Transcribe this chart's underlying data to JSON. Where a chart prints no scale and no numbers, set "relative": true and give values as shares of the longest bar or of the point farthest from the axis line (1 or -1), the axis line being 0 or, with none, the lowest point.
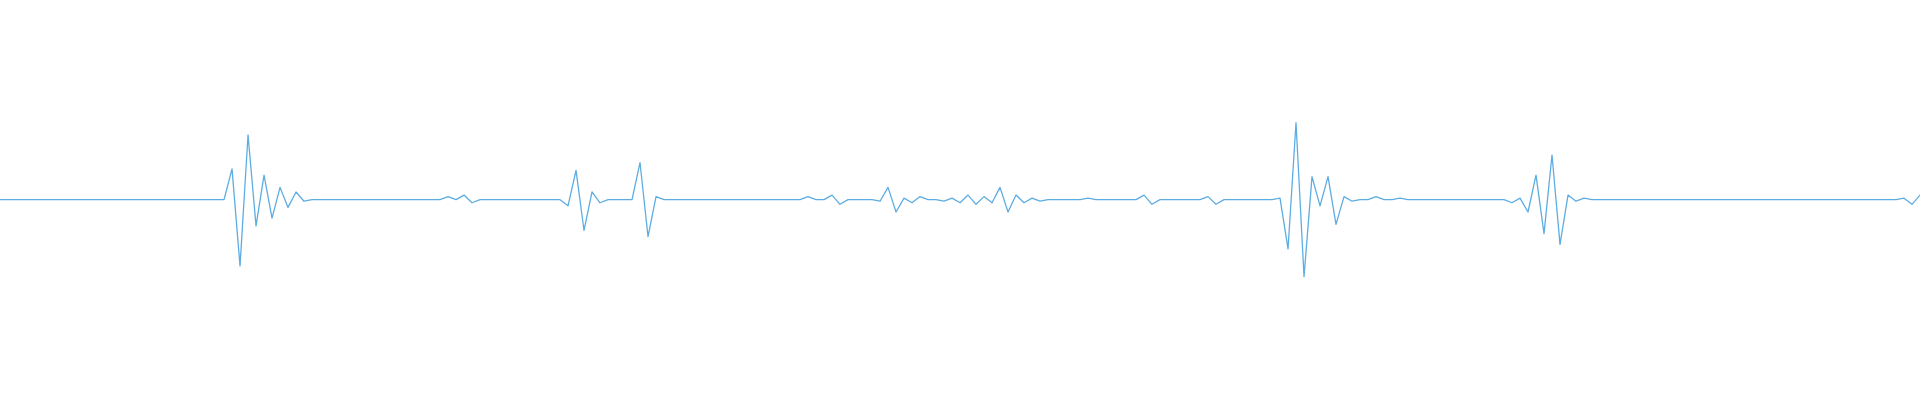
{
  "chart_data": {
    "type": "line",
    "relative": true,
    "color": "#5dade2",
    "categories": [
      null,
      null,
      null,
      null,
      null,
      null,
      null,
      null,
      null,
      null,
      null,
      null,
      null,
      null,
      null,
      null,
      null,
      null,
      null,
      null,
      null,
      null,
      null,
      null,
      null,
      null,
      null,
      null,
      null,
      null,
      null,
      null,
      null,
      null,
      null,
      null,
      null,
      null,
      null,
      null,
      null,
      null,
      null,
      null,
      null,
      null,
      null,
      null,
      null,
      null,
      null,
      null,
      null,
      null,
      null,
      null,
      null,
      null,
      null,
      null,
      null,
      null,
      null,
      null,
      null,
      null,
      null,
      null,
      null,
      null,
      null,
      null,
      null,
      null,
      null,
      null,
      null,
      null,
      null,
      null,
      null,
      null,
      null,
      null,
      null,
      null,
      null,
      null,
      null,
      null,
      null,
      null,
      null,
      null,
      null,
      null,
      null,
      null,
      null,
      null,
      null,
      null,
      null,
      null,
      null,
      null,
      null,
      null,
      null,
      null,
      null,
      null,
      null,
      null,
      null,
      null,
      null,
      null,
      null,
      null,
      null,
      null,
      null,
      null,
      null,
      null,
      null,
      null,
      null,
      null,
      null,
      null,
      null,
      null,
      null,
      null,
      null,
      null,
      null,
      null,
      null,
      null,
      null,
      null,
      null,
      null,
      null,
      null,
      null,
      null,
      null,
      null,
      null,
      null,
      null,
      null,
      null,
      null,
      null,
      null,
      null,
      null,
      null,
      null,
      null,
      null,
      null,
      null,
      null,
      null,
      null,
      null,
      null,
      null,
      null,
      null,
      null,
      null,
      null,
      null,
      null,
      null,
      null,
      null,
      null,
      null,
      null,
      null,
      null,
      null,
      null,
      null,
      null,
      null,
      null,
      null,
      null,
      null,
      null,
      null,
      null,
      null,
      null,
      null,
      null,
      null,
      null,
      null,
      null,
      null,
      null,
      null,
      null,
      null,
      null,
      null,
      null,
      null,
      null,
      null,
      null,
      null,
      null,
      null,
      null,
      null,
      null,
      null,
      null,
      null,
      null,
      null,
      null,
      null,
      null,
      null,
      null,
      null,
      null,
      null,
      null
    ],
    "values": [
      0.5,
      0.5,
      0.5,
      0.5,
      0.5,
      0.5,
      0.5,
      0.5,
      0.5,
      0.5,
      0.5,
      0.5,
      0.5,
      0.5,
      0.5,
      0.5,
      0.5,
      0.5,
      0.5,
      0.5,
      0.5,
      0.5,
      0.5,
      0.5,
      0.5,
      0.5,
      0.5,
      0.5,
      0.5,
      0.7,
      0.07,
      0.92,
      0.33,
      0.66,
      0.38,
      0.58,
      0.45,
      0.55,
      0.49,
      0.5,
      0.5,
      0.5,
      0.5,
      0.5,
      0.5,
      0.5,
      0.5,
      0.5,
      0.5,
      0.5,
      0.5,
      0.5,
      0.5,
      0.5,
      0.5,
      0.5,
      0.52,
      0.5,
      0.53,
      0.48,
      0.5,
      0.5,
      0.5,
      0.5,
      0.5,
      0.5,
      0.5,
      0.5,
      0.5,
      0.5,
      0.5,
      0.46,
      0.69,
      0.3,
      0.55,
      0.48,
      0.5,
      0.5,
      0.5,
      0.5,
      0.74,
      0.26,
      0.52,
      0.5,
      0.5,
      0.5,
      0.5,
      0.5,
      0.5,
      0.5,
      0.5,
      0.5,
      0.5,
      0.5,
      0.5,
      0.5,
      0.5,
      0.5,
      0.5,
      0.5,
      0.5,
      0.52,
      0.5,
      0.5,
      0.53,
      0.47,
      0.5,
      0.5,
      0.5,
      0.5,
      0.49,
      0.58,
      0.42,
      0.51,
      0.48,
      0.52,
      0.5,
      0.5,
      0.49,
      0.51,
      0.48,
      0.53,
      0.47,
      0.52,
      0.48,
      0.58,
      0.42,
      0.53,
      0.48,
      0.51,
      0.49,
      0.5,
      0.5,
      0.5,
      0.5,
      0.5,
      0.51,
      0.5,
      0.5,
      0.5,
      0.5,
      0.5,
      0.5,
      0.53,
      0.47,
      0.5,
      0.5,
      0.5,
      0.5,
      0.5,
      0.5,
      0.52,
      0.47,
      0.5,
      0.5,
      0.5,
      0.5,
      0.5,
      0.5,
      0.5,
      0.51,
      0.18,
      1,
      0,
      0.65,
      0.46,
      0.65,
      0.34,
      0.52,
      0.49,
      0.5,
      0.5,
      0.52,
      0.5,
      0.5,
      0.51,
      0.5,
      0.5,
      0.5,
      0.5,
      0.5,
      0.5,
      0.5,
      0.5,
      0.5,
      0.5,
      0.5,
      0.5,
      0.5,
      0.48,
      0.51,
      0.42,
      0.66,
      0.28,
      0.79,
      0.21,
      0.53,
      0.49,
      0.51,
      0.5,
      0.5,
      0.5,
      0.5,
      0.5,
      0.5,
      0.5,
      0.5,
      0.5,
      0.5,
      0.5,
      0.5,
      0.5,
      0.5,
      0.5,
      0.5,
      0.5,
      0.5,
      0.5,
      0.5,
      0.5,
      0.5,
      0.5,
      0.5,
      0.5,
      0.5,
      0.5,
      0.5,
      0.5,
      0.5,
      0.5,
      0.5,
      0.5,
      0.5,
      0.5,
      0.5,
      0.5,
      0.5,
      0.5,
      0.51,
      0.47,
      0.53
    ]
  }
}
